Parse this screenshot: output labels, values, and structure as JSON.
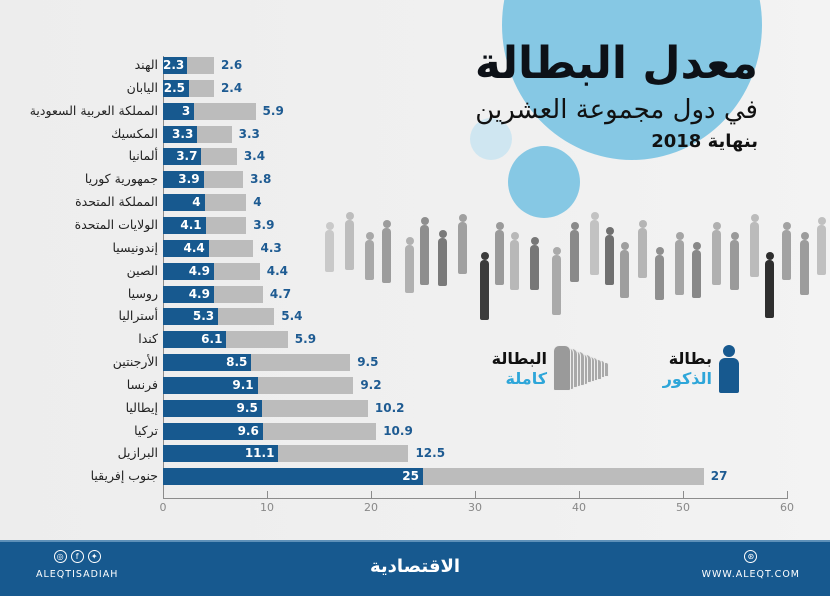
{
  "title": {
    "main": "معدل البطالة",
    "sub": "في دول مجموعة العشرين",
    "date": "بنهاية 2018"
  },
  "legend": {
    "male": {
      "line1": "بطالة",
      "line2": "الذكور",
      "color": "#17598f"
    },
    "full": {
      "line1": "البطالة",
      "line2": "كاملة",
      "color": "#bcbcbc"
    }
  },
  "footer": {
    "social_handle": "ALEQTISADIAH",
    "logo": "الاقتصادية",
    "website": "WWW.ALEQT.COM",
    "social_icons": [
      "instagram-icon",
      "facebook-icon",
      "twitter-icon"
    ],
    "web_icon": "globe-icon"
  },
  "chart_data": {
    "type": "bar",
    "orientation": "horizontal",
    "stacked": true,
    "title": "معدل البطالة في دول مجموعة العشرين بنهاية 2018",
    "xlabel": "",
    "ylabel": "",
    "xlim": [
      0,
      60
    ],
    "xticks": [
      0,
      10,
      20,
      30,
      40,
      50,
      60
    ],
    "grid": false,
    "legend_position": "right-middle",
    "categories": [
      "الهند",
      "اليابان",
      "المملكة العربية السعودية",
      "المكسيك",
      "ألمانيا",
      "جمهورية كوريا",
      "المملكة المتحدة",
      "الولايات المتحدة",
      "إندونيسيا",
      "الصين",
      "روسيا",
      "أستراليا",
      "كندا",
      "الأرجنتين",
      "فرنسا",
      "إيطاليا",
      "تركيا",
      "البرازيل",
      "جنوب إفريقيا"
    ],
    "series": [
      {
        "name": "بطالة الذكور",
        "color": "#17598f",
        "values": [
          2.3,
          2.5,
          3,
          3.3,
          3.7,
          3.9,
          4,
          4.1,
          4.4,
          4.9,
          4.9,
          5.3,
          6.1,
          8.5,
          9.1,
          9.5,
          9.6,
          11.1,
          25
        ]
      },
      {
        "name": "البطالة كاملة",
        "color": "#bcbcbc",
        "values": [
          2.6,
          2.4,
          5.9,
          3.3,
          3.4,
          3.8,
          4,
          3.9,
          4.3,
          4.4,
          4.7,
          5.4,
          5.9,
          9.5,
          9.2,
          10.2,
          10.9,
          12.5,
          27
        ]
      }
    ],
    "value_labels": {
      "male": [
        "2.3",
        "2.5",
        "3",
        "3.3",
        "3.7",
        "3.9",
        "4",
        "4.1",
        "4.4",
        "4.9",
        "4.9",
        "5.3",
        "6.1",
        "8.5",
        "9.1",
        "9.5",
        "9.6",
        "11.1",
        "25"
      ],
      "full": [
        "2.6",
        "2.4",
        "5.9",
        "3.3",
        "3.4",
        "3.8",
        "4",
        "3.9",
        "4.3",
        "4.4",
        "4.7",
        "5.4",
        "5.9",
        "9.5",
        "9.2",
        "10.2",
        "10.9",
        "12.5",
        "27"
      ]
    }
  }
}
